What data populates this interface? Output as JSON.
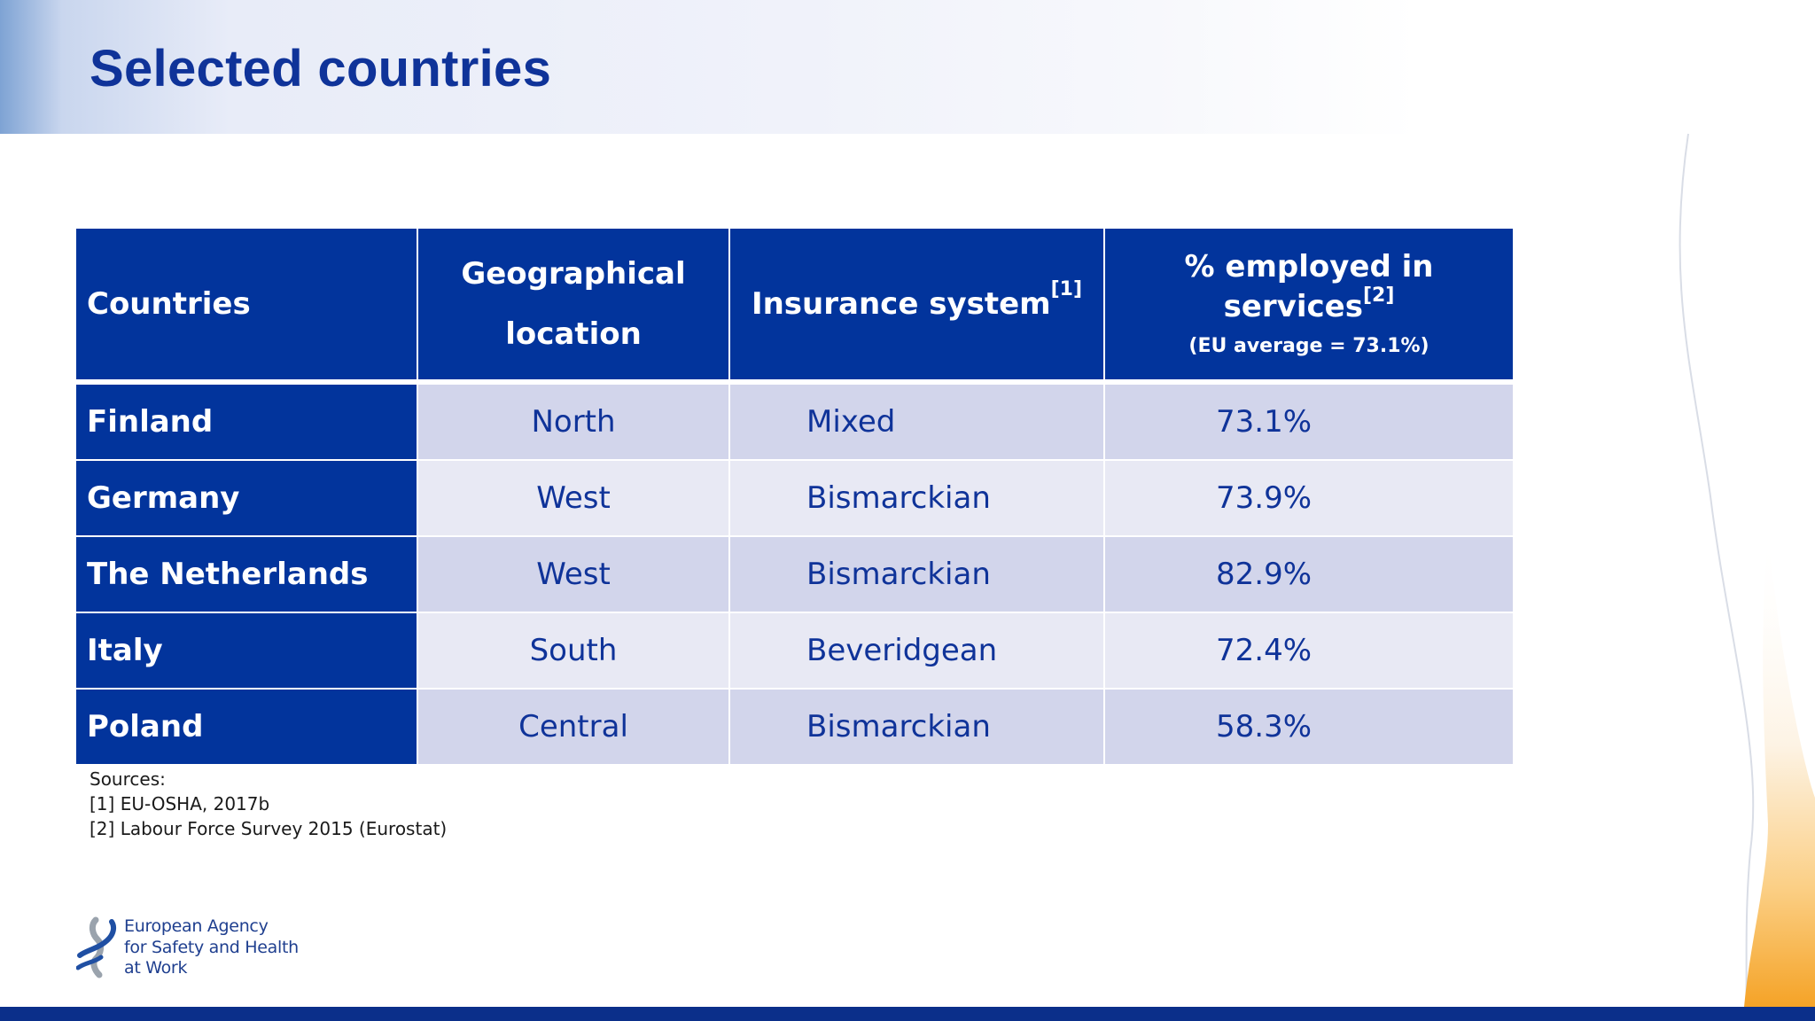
{
  "slide": {
    "title": "Selected countries"
  },
  "table": {
    "headers": {
      "countries": "Countries",
      "location_line1": "Geographical",
      "location_line2": "location",
      "insurance": "Insurance system",
      "insurance_ref": "[1]",
      "services": "% employed in services",
      "services_ref": "[2]",
      "services_sub": "(EU average = 73.1%)"
    },
    "rows": [
      {
        "country": "Finland",
        "location": "North",
        "insurance": "Mixed",
        "services_pct": "73.1%"
      },
      {
        "country": "Germany",
        "location": "West",
        "insurance": "Bismarckian",
        "services_pct": "73.9%"
      },
      {
        "country": "The Netherlands",
        "location": "West",
        "insurance": "Bismarckian",
        "services_pct": "82.9%"
      },
      {
        "country": "Italy",
        "location": "South",
        "insurance": "Beveridgean",
        "services_pct": "72.4%"
      },
      {
        "country": "Poland",
        "location": "Central",
        "insurance": "Bismarckian",
        "services_pct": "58.3%"
      }
    ]
  },
  "sources": {
    "heading": "Sources:",
    "items": [
      "[1] EU-OSHA, 2017b",
      "[2] Labour Force Survey 2015 (Eurostat)"
    ]
  },
  "logo": {
    "line1": "European Agency",
    "line2": "for Safety and Health",
    "line3": "at Work"
  },
  "colors": {
    "brand_blue": "#02349c",
    "title_blue": "#0f3399",
    "row_odd": "#d2d5eb",
    "row_even": "#e8e9f4",
    "accent_orange": "#f5a623"
  }
}
